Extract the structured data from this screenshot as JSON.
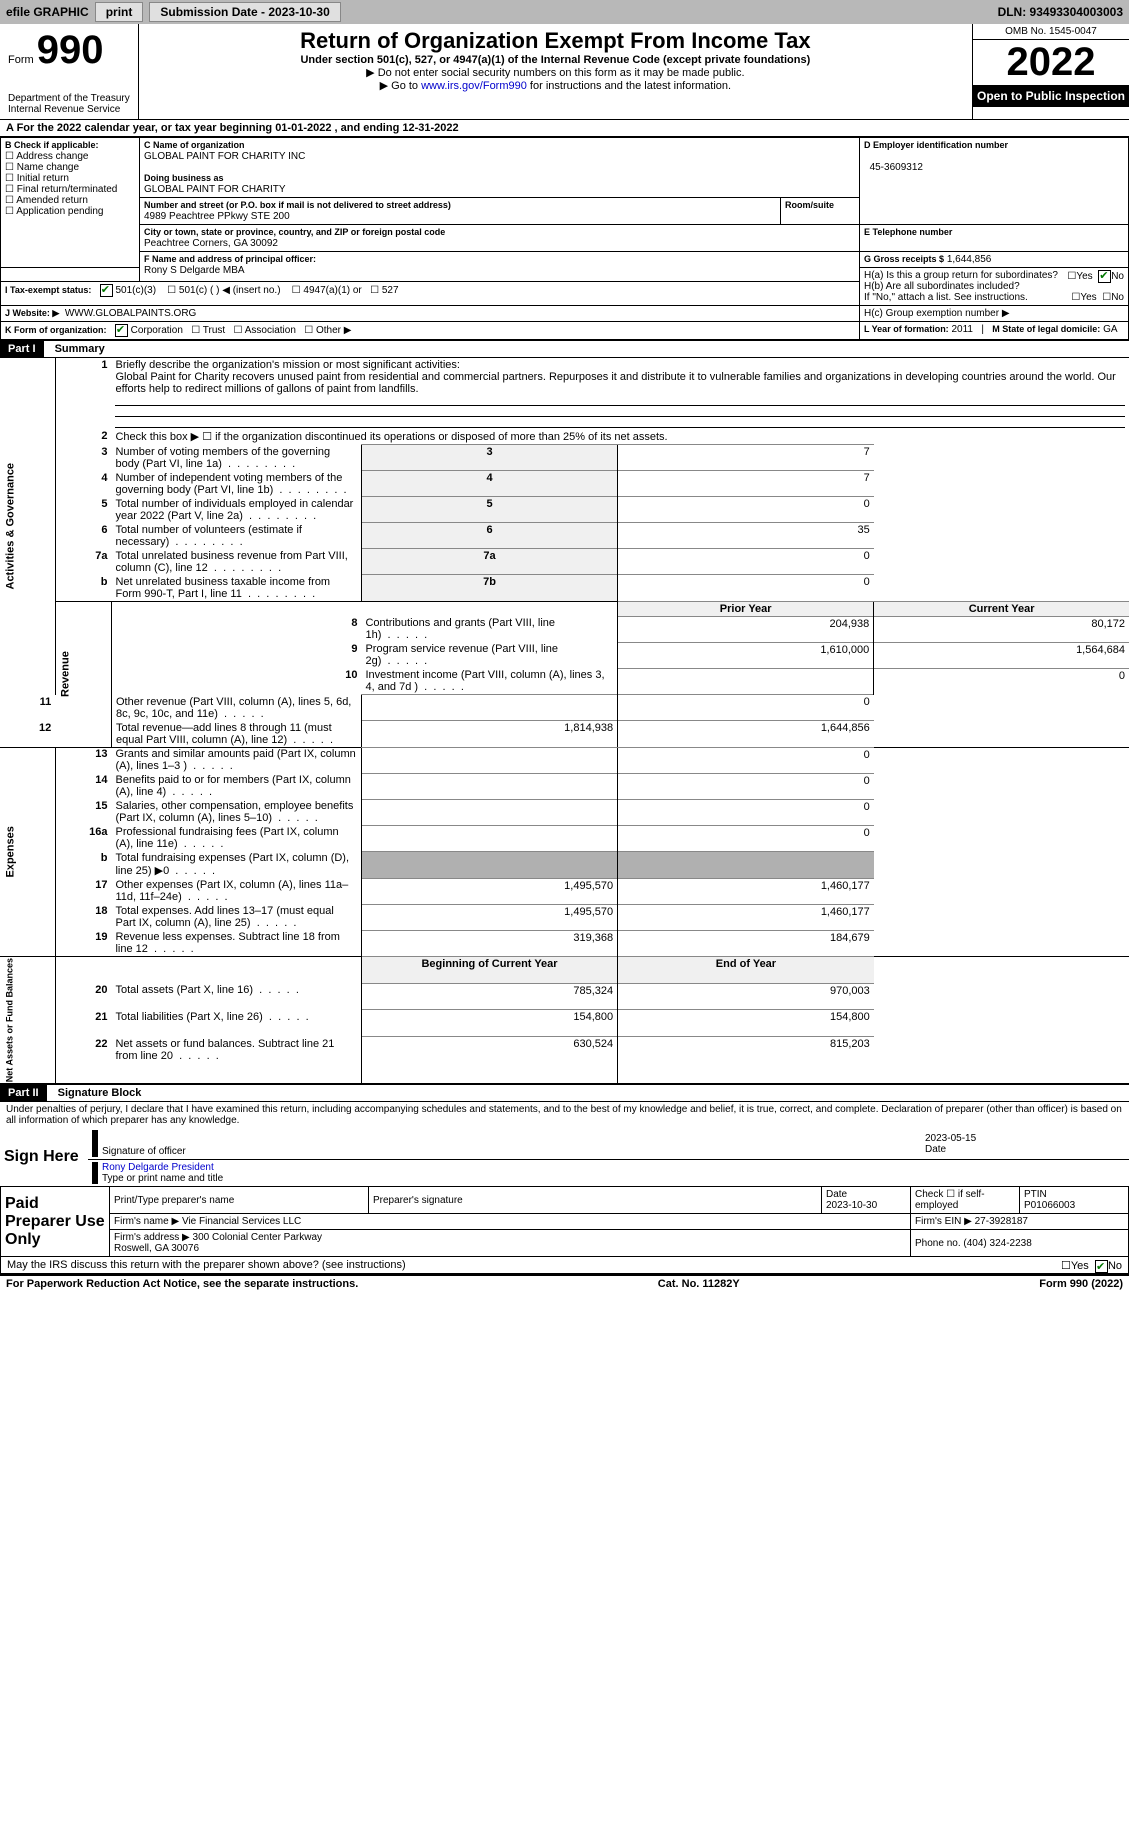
{
  "topbar": {
    "efile": "efile GRAPHIC",
    "print": "print",
    "submission": "Submission Date - 2023-10-30",
    "dln": "DLN: 93493304003003"
  },
  "header": {
    "form_word": "Form",
    "form_number": "990",
    "dept": "Department of the Treasury\nInternal Revenue Service",
    "title": "Return of Organization Exempt From Income Tax",
    "subtitle": "Under section 501(c), 527, or 4947(a)(1) of the Internal Revenue Code (except private foundations)",
    "note1": "▶ Do not enter social security numbers on this form as it may be made public.",
    "note2_pre": "▶ Go to ",
    "note2_link": "www.irs.gov/Form990",
    "note2_post": " for instructions and the latest information.",
    "omb": "OMB No. 1545-0047",
    "year": "2022",
    "open": "Open to Public Inspection"
  },
  "periodline": "A For the 2022 calendar year, or tax year beginning 01-01-2022     , and ending 12-31-2022",
  "boxB": {
    "label": "B Check if applicable:",
    "items": [
      "Address change",
      "Name change",
      "Initial return",
      "Final return/terminated",
      "Amended return",
      "Application pending"
    ]
  },
  "boxC": {
    "name_label": "C Name of organization",
    "name": "GLOBAL PAINT FOR CHARITY INC",
    "dba_label": "Doing business as",
    "dba": "GLOBAL PAINT FOR CHARITY",
    "street_label": "Number and street (or P.O. box if mail is not delivered to street address)",
    "room_label": "Room/suite",
    "street": "4989 Peachtree PPkwy STE 200",
    "city_label": "City or town, state or province, country, and ZIP or foreign postal code",
    "city": "Peachtree Corners, GA  30092"
  },
  "boxD": {
    "label": "D Employer identification number",
    "value": "45-3609312"
  },
  "boxE": {
    "label": "E Telephone number",
    "value": ""
  },
  "boxG": {
    "label": "G Gross receipts $",
    "value": "1,644,856"
  },
  "boxF": {
    "label": "F Name and address of principal officer:",
    "value": "Rony S Delgarde MBA"
  },
  "boxH": {
    "a": "H(a)  Is this a group return for subordinates?",
    "b": "H(b)  Are all subordinates included?",
    "b_note": "If \"No,\" attach a list. See instructions.",
    "c": "H(c)  Group exemption number ▶",
    "yes": "Yes",
    "no": "No"
  },
  "boxI": {
    "label": "I     Tax-exempt status:",
    "o1": "501(c)(3)",
    "o2": "501(c) (   ) ◀ (insert no.)",
    "o3": "4947(a)(1) or",
    "o4": "527"
  },
  "boxJ": {
    "label": "J   Website: ▶",
    "value": "WWW.GLOBALPAINTS.ORG"
  },
  "boxK": {
    "label": "K Form of organization:",
    "o1": "Corporation",
    "o2": "Trust",
    "o3": "Association",
    "o4": "Other ▶"
  },
  "boxL": {
    "label": "L Year of formation:",
    "value": "2011"
  },
  "boxM": {
    "label": "M State of legal domicile:",
    "value": "GA"
  },
  "part1": {
    "header": "Part I",
    "title": "Summary",
    "line1_label": "Briefly describe the organization's mission or most significant activities:",
    "line1_text": "Global Paint for Charity recovers unused paint from residential and commercial partners. Repurposes it and distribute it to vulnerable families and organizations in developing countries around the world. Our efforts help to redirect millions of gallons of paint from landfills.",
    "line2": "Check this box ▶ ☐ if the organization discontinued its operations or disposed of more than 25% of its net assets.",
    "vert_ag": "Activities & Governance",
    "vert_rev": "Revenue",
    "vert_exp": "Expenses",
    "vert_net": "Net Assets or Fund Balances",
    "lines_ag": [
      {
        "n": "3",
        "t": "Number of voting members of the governing body (Part VI, line 1a)",
        "box": "3",
        "v": "7"
      },
      {
        "n": "4",
        "t": "Number of independent voting members of the governing body (Part VI, line 1b)",
        "box": "4",
        "v": "7"
      },
      {
        "n": "5",
        "t": "Total number of individuals employed in calendar year 2022 (Part V, line 2a)",
        "box": "5",
        "v": "0"
      },
      {
        "n": "6",
        "t": "Total number of volunteers (estimate if necessary)",
        "box": "6",
        "v": "35"
      },
      {
        "n": "7a",
        "t": "Total unrelated business revenue from Part VIII, column (C), line 12",
        "box": "7a",
        "v": "0"
      },
      {
        "n": "b",
        "t": "Net unrelated business taxable income from Form 990-T, Part I, line 11",
        "box": "7b",
        "v": "0"
      }
    ],
    "col_prior": "Prior Year",
    "col_current": "Current Year",
    "lines_rev": [
      {
        "n": "8",
        "t": "Contributions and grants (Part VIII, line 1h)",
        "p": "204,938",
        "c": "80,172"
      },
      {
        "n": "9",
        "t": "Program service revenue (Part VIII, line 2g)",
        "p": "1,610,000",
        "c": "1,564,684"
      },
      {
        "n": "10",
        "t": "Investment income (Part VIII, column (A), lines 3, 4, and 7d )",
        "p": "",
        "c": "0"
      },
      {
        "n": "11",
        "t": "Other revenue (Part VIII, column (A), lines 5, 6d, 8c, 9c, 10c, and 11e)",
        "p": "",
        "c": "0"
      },
      {
        "n": "12",
        "t": "Total revenue—add lines 8 through 11 (must equal Part VIII, column (A), line 12)",
        "p": "1,814,938",
        "c": "1,644,856"
      }
    ],
    "lines_exp": [
      {
        "n": "13",
        "t": "Grants and similar amounts paid (Part IX, column (A), lines 1–3 )",
        "p": "",
        "c": "0"
      },
      {
        "n": "14",
        "t": "Benefits paid to or for members (Part IX, column (A), line 4)",
        "p": "",
        "c": "0"
      },
      {
        "n": "15",
        "t": "Salaries, other compensation, employee benefits (Part IX, column (A), lines 5–10)",
        "p": "",
        "c": "0"
      },
      {
        "n": "16a",
        "t": "Professional fundraising fees (Part IX, column (A), line 11e)",
        "p": "",
        "c": "0"
      },
      {
        "n": "b",
        "t": "Total fundraising expenses (Part IX, column (D), line 25) ▶0",
        "p": "",
        "c": "",
        "shade": true
      },
      {
        "n": "17",
        "t": "Other expenses (Part IX, column (A), lines 11a–11d, 11f–24e)",
        "p": "1,495,570",
        "c": "1,460,177"
      },
      {
        "n": "18",
        "t": "Total expenses. Add lines 13–17 (must equal Part IX, column (A), line 25)",
        "p": "1,495,570",
        "c": "1,460,177"
      },
      {
        "n": "19",
        "t": "Revenue less expenses. Subtract line 18 from line 12",
        "p": "319,368",
        "c": "184,679"
      }
    ],
    "col_begin": "Beginning of Current Year",
    "col_end": "End of Year",
    "lines_net": [
      {
        "n": "20",
        "t": "Total assets (Part X, line 16)",
        "p": "785,324",
        "c": "970,003"
      },
      {
        "n": "21",
        "t": "Total liabilities (Part X, line 26)",
        "p": "154,800",
        "c": "154,800"
      },
      {
        "n": "22",
        "t": "Net assets or fund balances. Subtract line 21 from line 20",
        "p": "630,524",
        "c": "815,203"
      }
    ]
  },
  "part2": {
    "header": "Part II",
    "title": "Signature Block",
    "declaration": "Under penalties of perjury, I declare that I have examined this return, including accompanying schedules and statements, and to the best of my knowledge and belief, it is true, correct, and complete. Declaration of preparer (other than officer) is based on all information of which preparer has any knowledge.",
    "sign_here": "Sign Here",
    "sig_officer": "Signature of officer",
    "sig_date": "2023-05-15",
    "sig_name": "Rony Delgarde  President",
    "sig_name_label": "Type or print name and title",
    "paid_label": "Paid Preparer Use Only",
    "prep_name_label": "Print/Type preparer's name",
    "prep_sig_label": "Preparer's signature",
    "prep_date_label": "Date",
    "prep_date": "2023-10-30",
    "prep_check": "Check ☐ if self-employed",
    "ptin_label": "PTIN",
    "ptin": "P01066003",
    "firm_name_label": "Firm's name    ▶",
    "firm_name": "Vie Financial Services LLC",
    "firm_ein_label": "Firm's EIN ▶",
    "firm_ein": "27-3928187",
    "firm_addr_label": "Firm's address ▶",
    "firm_addr": "300 Colonial Center Parkway\nRoswell, GA  30076",
    "phone_label": "Phone no.",
    "phone": "(404) 324-2238",
    "discuss": "May the IRS discuss this return with the preparer shown above? (see instructions)",
    "yes": "Yes",
    "no": "No"
  },
  "footer": {
    "left": "For Paperwork Reduction Act Notice, see the separate instructions.",
    "mid": "Cat. No. 11282Y",
    "right": "Form 990 (2022)"
  }
}
